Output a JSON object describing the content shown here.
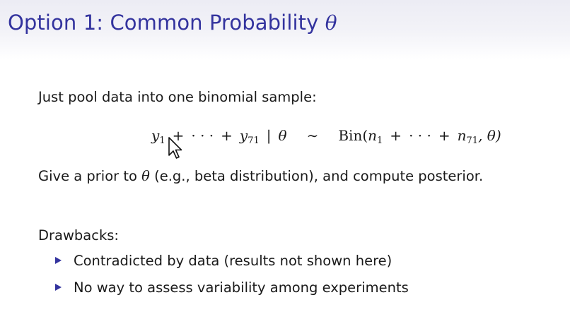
{
  "title": {
    "text": "Option 1: Common Probability",
    "theta": "θ"
  },
  "intro": "Just pool data into one binomial sample:",
  "equation": {
    "y": "y",
    "sub1": "1",
    "plus": "+",
    "dots": "· · ·",
    "sub71": "71",
    "given": "|",
    "theta": "θ",
    "sim": "∼",
    "bin": "Bin(",
    "n": "n",
    "comma_theta": ", θ)"
  },
  "prior": {
    "before": "Give a prior to",
    "theta": "θ",
    "after": "(e.g., beta distribution), and compute posterior."
  },
  "drawbacks": {
    "heading": "Drawbacks:",
    "items": [
      "Contradicted by data (results not shown here)",
      "No way to assess variability among experiments"
    ]
  },
  "icons": {
    "cursor": "mouse-pointer-icon",
    "bullet": "triangle-bullet-icon"
  },
  "colors": {
    "title": "#33339e",
    "bullet": "#33339e",
    "text": "#1a1a1a"
  }
}
